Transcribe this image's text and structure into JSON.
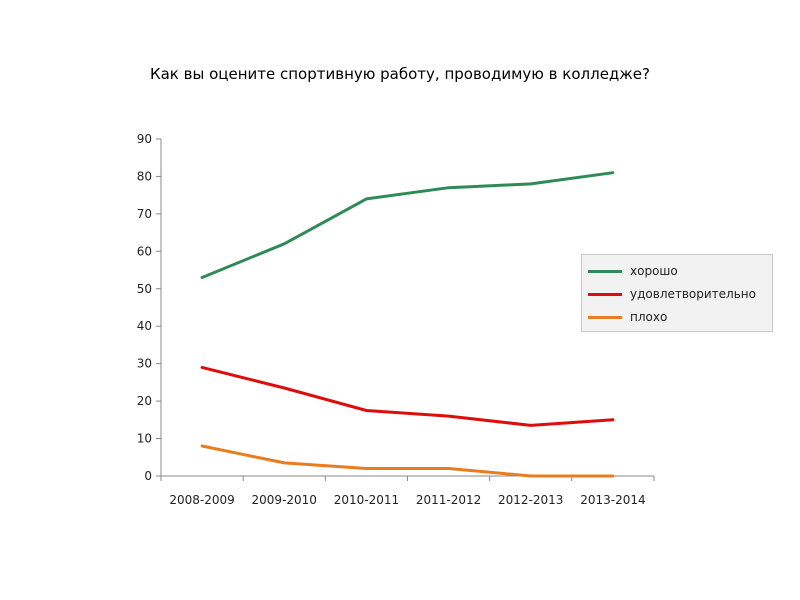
{
  "chart_data": {
    "type": "line",
    "title": "Как вы оцените спортивную работу, проводимую в колледже?",
    "xlabel": "",
    "ylabel": "",
    "categories": [
      "2008-2009",
      "2009-2010",
      "2010-2011",
      "2011-2012",
      "2012-2013",
      "2013-2014"
    ],
    "ylim": [
      0,
      90
    ],
    "yticks": [
      0,
      10,
      20,
      30,
      40,
      50,
      60,
      70,
      80,
      90
    ],
    "grid": false,
    "legend_position": "right",
    "series": [
      {
        "name": "хорошо",
        "color": "#2e8b57",
        "values": [
          53,
          62,
          74,
          77,
          78,
          81
        ]
      },
      {
        "name": "удовлетворительно",
        "color": "#dd0d0d",
        "values": [
          29,
          23.5,
          17.5,
          16,
          13.5,
          15
        ]
      },
      {
        "name": "плохо",
        "color": "#e97c1f",
        "values": [
          8,
          3.5,
          2,
          2,
          0,
          0
        ]
      }
    ]
  }
}
